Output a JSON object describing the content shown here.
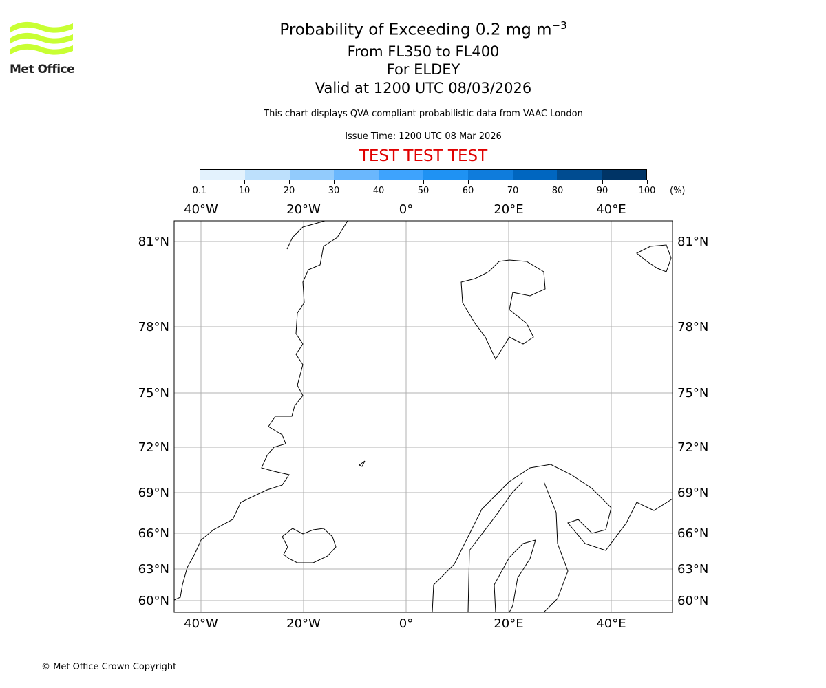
{
  "logo": {
    "text": "Met Office",
    "color": "#c8ff33"
  },
  "title": {
    "line1_prefix": "Probability of Exceeding 0.2 mg m",
    "line1_sup": "−3",
    "line2": "From FL350 to FL400",
    "line3": "For ELDEY",
    "line4": "Valid at 1200 UTC 08/03/2026"
  },
  "subtitle": "This chart displays QVA compliant probabilistic data from VAAC London",
  "issue_time": "Issue Time: 1200 UTC 08 Mar 2026",
  "test_banner": {
    "text": "TEST TEST TEST",
    "color": "#e00000"
  },
  "colorbar": {
    "ticks": [
      "0.1",
      "10",
      "20",
      "30",
      "40",
      "50",
      "60",
      "70",
      "80",
      "90",
      "100"
    ],
    "unit": "(%)",
    "colors": [
      "#e3f2fd",
      "#bde0fc",
      "#92cbfc",
      "#6ab7fd",
      "#3ea3fd",
      "#1f92f3",
      "#0f7cdc",
      "#0066c0",
      "#004c91",
      "#003466"
    ]
  },
  "map": {
    "lon_ticks": [
      {
        "value": -40,
        "label": "40°W"
      },
      {
        "value": -20,
        "label": "20°W"
      },
      {
        "value": 0,
        "label": "0°"
      },
      {
        "value": 20,
        "label": "20°E"
      },
      {
        "value": 40,
        "label": "40°E"
      }
    ],
    "lat_ticks": [
      {
        "value": 81,
        "label": "81°N"
      },
      {
        "value": 78,
        "label": "78°N"
      },
      {
        "value": 75,
        "label": "75°N"
      },
      {
        "value": 72,
        "label": "72°N"
      },
      {
        "value": 69,
        "label": "69°N"
      },
      {
        "value": 66,
        "label": "66°N"
      },
      {
        "value": 63,
        "label": "63°N"
      },
      {
        "value": 60,
        "label": "60°N"
      }
    ],
    "gridline_color": "#b0b0b0"
  },
  "copyright": "© Met Office Crown Copyright"
}
